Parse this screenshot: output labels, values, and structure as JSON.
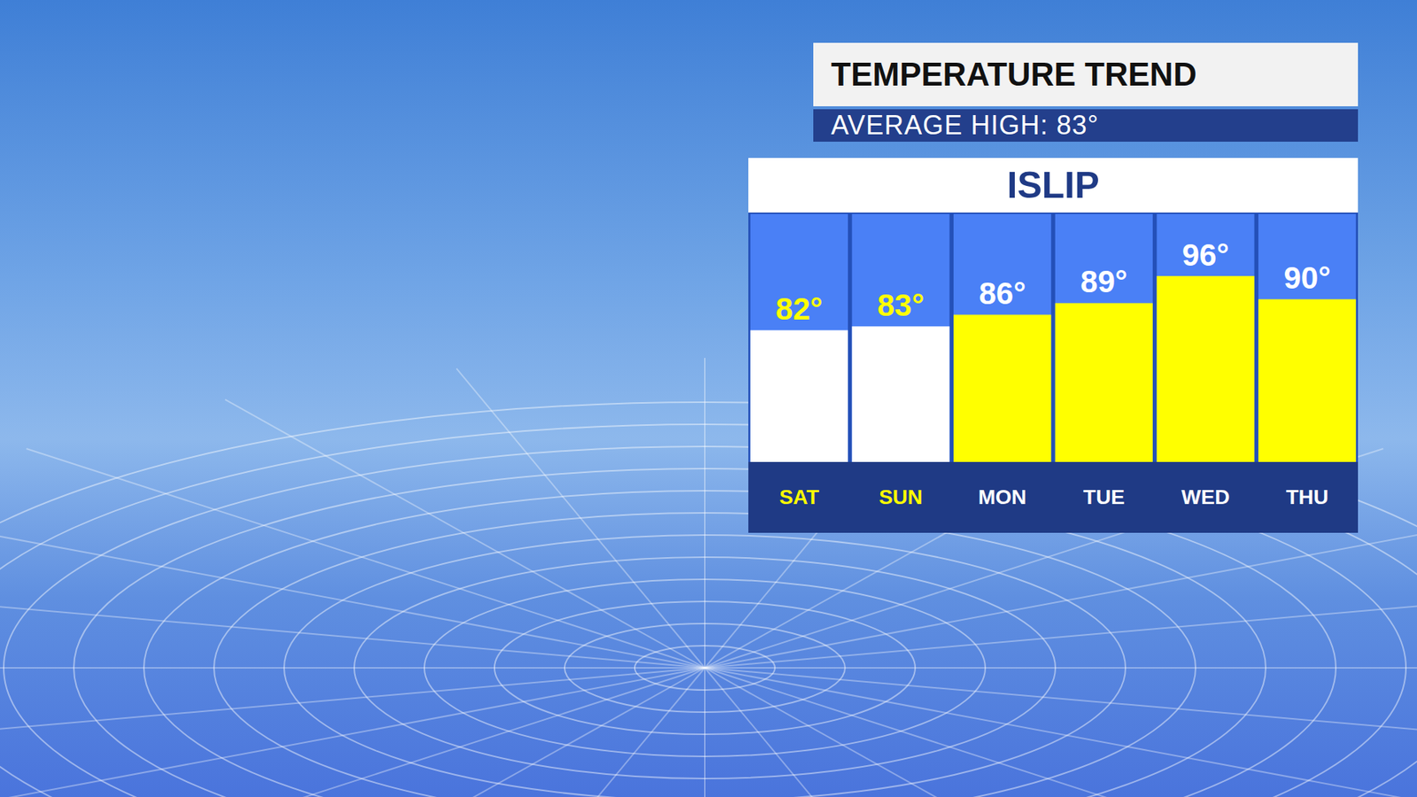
{
  "chart_data": {
    "type": "bar",
    "title": "TEMPERATURE TREND",
    "subtitle": "AVERAGE HIGH: 83°",
    "location_label": "ISLIP",
    "categories": [
      "SAT",
      "SUN",
      "MON",
      "TUE",
      "WED",
      "THU"
    ],
    "values": [
      82,
      83,
      86,
      89,
      96,
      90
    ],
    "value_labels": [
      "82°",
      "83°",
      "86°",
      "89°",
      "96°",
      "90°"
    ],
    "colors": [
      "#ffffff",
      "#ffffff",
      "#ffff00",
      "#ffff00",
      "#ffff00",
      "#ffff00"
    ],
    "ylim": [
      48,
      112
    ],
    "grid": false,
    "data_labels": true,
    "tick_labels": "x"
  }
}
